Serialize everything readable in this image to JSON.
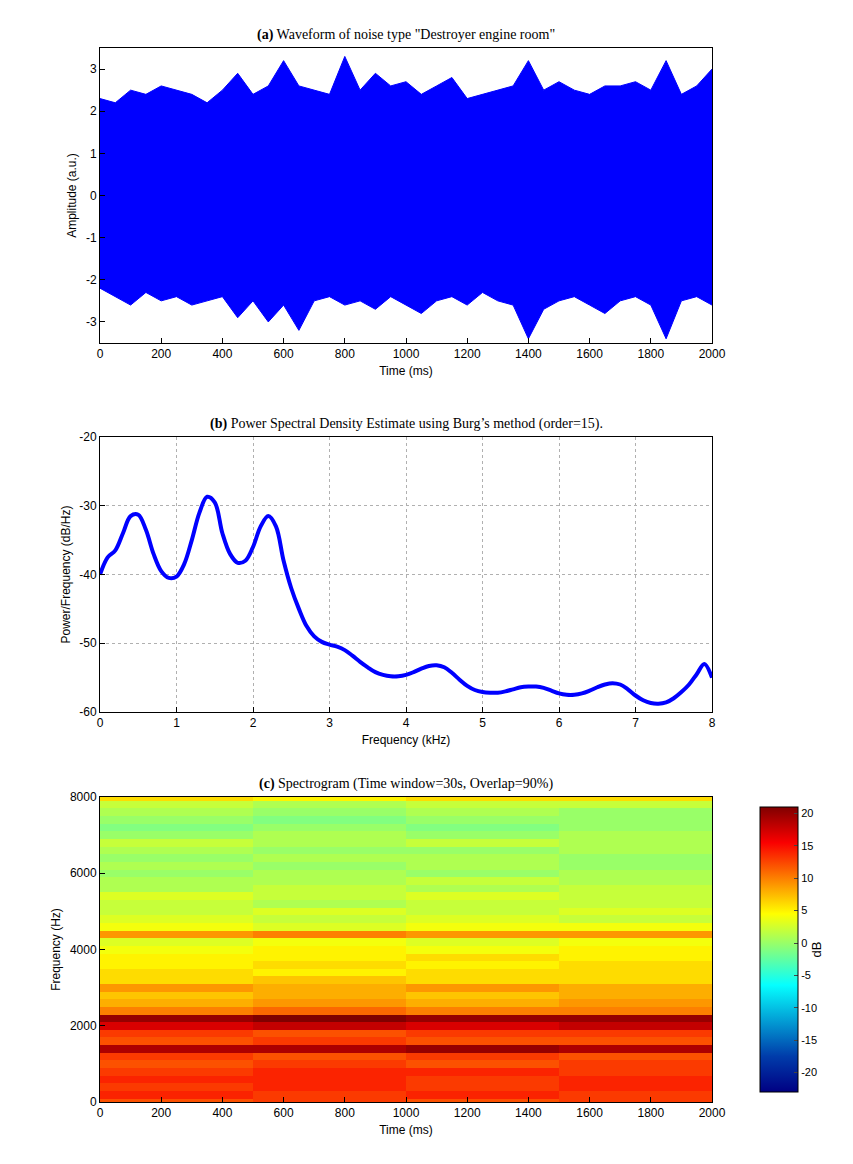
{
  "chart_data": [
    {
      "type": "area",
      "label": "(a)",
      "title": "Waveform of noise type \"Destroyer engine room\"",
      "x_label": "Time (ms)",
      "y_label": "Amplitude (a.u.)",
      "color": "#0000ff",
      "x": [
        0,
        50,
        100,
        150,
        200,
        250,
        300,
        350,
        400,
        450,
        500,
        550,
        600,
        650,
        700,
        750,
        800,
        850,
        900,
        950,
        1000,
        1050,
        1100,
        1150,
        1200,
        1250,
        1300,
        1350,
        1400,
        1450,
        1500,
        1550,
        1600,
        1650,
        1700,
        1750,
        1800,
        1850,
        1900,
        1950,
        2000
      ],
      "envelope": {
        "upper": [
          2.3,
          2.2,
          2.5,
          2.4,
          2.6,
          2.5,
          2.4,
          2.2,
          2.5,
          2.9,
          2.4,
          2.6,
          3.2,
          2.6,
          2.5,
          2.4,
          3.3,
          2.5,
          2.9,
          2.6,
          2.7,
          2.4,
          2.6,
          2.8,
          2.3,
          2.4,
          2.5,
          2.6,
          3.2,
          2.5,
          2.7,
          2.5,
          2.4,
          2.6,
          2.6,
          2.7,
          2.5,
          3.2,
          2.4,
          2.6,
          3.0
        ],
        "lower": [
          -2.2,
          -2.4,
          -2.6,
          -2.3,
          -2.5,
          -2.4,
          -2.6,
          -2.5,
          -2.4,
          -2.9,
          -2.5,
          -3.0,
          -2.6,
          -3.2,
          -2.5,
          -2.4,
          -2.6,
          -2.5,
          -2.7,
          -2.4,
          -2.6,
          -2.8,
          -2.5,
          -2.4,
          -2.6,
          -2.3,
          -2.5,
          -2.6,
          -3.4,
          -2.7,
          -2.5,
          -2.4,
          -2.6,
          -2.8,
          -2.5,
          -2.4,
          -2.6,
          -3.4,
          -2.5,
          -2.4,
          -2.6
        ]
      },
      "xlim": [
        0,
        2000
      ],
      "xticks": [
        0,
        200,
        400,
        600,
        800,
        1000,
        1200,
        1400,
        1600,
        1800,
        2000
      ],
      "ylim": [
        -3.5,
        3.5
      ],
      "yticks": [
        -3,
        -2,
        -1,
        0,
        1,
        2,
        3
      ],
      "grid": false
    },
    {
      "type": "line",
      "label": "(b)",
      "title": "Power Spectral Density Estimate using Burg’s method (order=15).",
      "x_label": "Frequency (kHz)",
      "y_label": "Power/Frequency (dB/Hz)",
      "color": "#0000ff",
      "x": [
        0,
        0.1,
        0.2,
        0.3,
        0.4,
        0.5,
        0.6,
        0.7,
        0.8,
        0.9,
        1.0,
        1.1,
        1.2,
        1.3,
        1.4,
        1.5,
        1.6,
        1.7,
        1.8,
        1.9,
        2.0,
        2.1,
        2.2,
        2.3,
        2.4,
        2.5,
        2.6,
        2.7,
        2.8,
        2.9,
        3.0,
        3.1,
        3.2,
        3.3,
        3.4,
        3.5,
        3.6,
        3.7,
        3.8,
        3.9,
        4.0,
        4.1,
        4.2,
        4.3,
        4.4,
        4.5,
        4.6,
        4.7,
        4.8,
        4.9,
        5.0,
        5.1,
        5.2,
        5.3,
        5.4,
        5.5,
        5.6,
        5.7,
        5.8,
        5.9,
        6.0,
        6.1,
        6.2,
        6.3,
        6.4,
        6.5,
        6.6,
        6.7,
        6.8,
        6.9,
        7.0,
        7.1,
        7.2,
        7.3,
        7.4,
        7.5,
        7.6,
        7.7,
        7.8,
        7.9,
        8.0
      ],
      "values": [
        -40,
        -37.5,
        -36.5,
        -34,
        -31.5,
        -31.3,
        -33.5,
        -37,
        -39.5,
        -40.5,
        -40.3,
        -38.5,
        -35,
        -31,
        -28.7,
        -29.5,
        -34,
        -37,
        -38.3,
        -38,
        -36,
        -33,
        -31.5,
        -33,
        -38,
        -42,
        -45,
        -47.5,
        -49,
        -49.8,
        -50.2,
        -50.5,
        -51,
        -51.8,
        -52.7,
        -53.5,
        -54.2,
        -54.6,
        -54.8,
        -54.8,
        -54.6,
        -54.2,
        -53.7,
        -53.3,
        -53.2,
        -53.5,
        -54.3,
        -55.3,
        -56.2,
        -56.8,
        -57.1,
        -57.2,
        -57.2,
        -57,
        -56.7,
        -56.4,
        -56.3,
        -56.3,
        -56.5,
        -56.9,
        -57.3,
        -57.5,
        -57.5,
        -57.3,
        -56.9,
        -56.4,
        -56,
        -55.8,
        -56,
        -56.7,
        -57.6,
        -58.3,
        -58.7,
        -58.8,
        -58.6,
        -58,
        -57.1,
        -56,
        -54.5,
        -53,
        -55
      ],
      "xlim": [
        0,
        8
      ],
      "xticks": [
        0,
        1,
        2,
        3,
        4,
        5,
        6,
        7,
        8
      ],
      "ylim": [
        -60,
        -20
      ],
      "yticks": [
        -60,
        -50,
        -40,
        -30,
        -20
      ],
      "grid": true
    },
    {
      "type": "heatmap",
      "label": "(c)",
      "title": "Spectrogram (Time window=30s, Overlap=90%)",
      "x_label": "Time (ms)",
      "y_label": "Frequency (Hz)",
      "colorbar_label": "dB",
      "x": [
        250,
        750,
        1250,
        1750
      ],
      "y": [
        0,
        200,
        400,
        600,
        800,
        1000,
        1200,
        1400,
        1600,
        1800,
        2000,
        2200,
        2400,
        2600,
        2800,
        3000,
        3200,
        3400,
        3600,
        3800,
        4000,
        4200,
        4400,
        4600,
        4800,
        5000,
        5200,
        5400,
        5600,
        5800,
        6000,
        6200,
        6400,
        6600,
        6800,
        7000,
        7200,
        7400,
        7600,
        7800,
        8000
      ],
      "z": [
        [
          12,
          13,
          12,
          13
        ],
        [
          14,
          13,
          14,
          13
        ],
        [
          13,
          14,
          13,
          14
        ],
        [
          14,
          14,
          13,
          14
        ],
        [
          13,
          14,
          14,
          13
        ],
        [
          12,
          13,
          12,
          13
        ],
        [
          13,
          12,
          13,
          12
        ],
        [
          19,
          19,
          20,
          19
        ],
        [
          12,
          13,
          12,
          12
        ],
        [
          13,
          12,
          13,
          13
        ],
        [
          17,
          18,
          17,
          18
        ],
        [
          20,
          21,
          20,
          20
        ],
        [
          10,
          11,
          10,
          10
        ],
        [
          8,
          9,
          8,
          9
        ],
        [
          7,
          8,
          7,
          8
        ],
        [
          9,
          8,
          9,
          8
        ],
        [
          6,
          7,
          6,
          6
        ],
        [
          6,
          5,
          6,
          6
        ],
        [
          5,
          6,
          5,
          6
        ],
        [
          5,
          5,
          6,
          5
        ],
        [
          4,
          5,
          4,
          5
        ],
        [
          3,
          4,
          3,
          4
        ],
        [
          9,
          10,
          9,
          9
        ],
        [
          4,
          3,
          4,
          4
        ],
        [
          3,
          2,
          3,
          2
        ],
        [
          2,
          3,
          2,
          3
        ],
        [
          2,
          1,
          2,
          2
        ],
        [
          3,
          2,
          3,
          2
        ],
        [
          1,
          2,
          1,
          2
        ],
        [
          1,
          1,
          2,
          1
        ],
        [
          0,
          1,
          0,
          1
        ],
        [
          1,
          0,
          1,
          0
        ],
        [
          0,
          1,
          1,
          0
        ],
        [
          1,
          0,
          0,
          1
        ],
        [
          2,
          1,
          2,
          1
        ],
        [
          0,
          1,
          0,
          1
        ],
        [
          -1,
          0,
          -1,
          0
        ],
        [
          0,
          -1,
          0,
          0
        ],
        [
          1,
          0,
          1,
          0
        ],
        [
          2,
          1,
          2,
          2
        ],
        [
          6,
          5,
          6,
          6
        ]
      ],
      "zlim": [
        -23,
        21
      ],
      "zticks": [
        -20,
        -15,
        -10,
        -5,
        0,
        5,
        10,
        15,
        20
      ],
      "xlim": [
        0,
        2000
      ],
      "xticks": [
        0,
        200,
        400,
        600,
        800,
        1000,
        1200,
        1400,
        1600,
        1800,
        2000
      ],
      "ylim": [
        0,
        8000
      ],
      "yticks": [
        0,
        2000,
        4000,
        6000,
        8000
      ],
      "grid": false
    }
  ]
}
